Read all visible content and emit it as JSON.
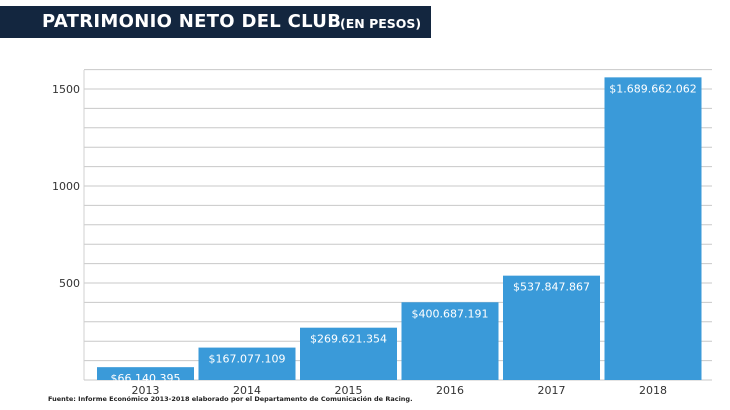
{
  "chart_data": {
    "type": "bar",
    "title": "PATRIMONIO NETO DEL CLUB",
    "subtitle": "(EN PESOS)",
    "categories": [
      "2013",
      "2014",
      "2015",
      "2016",
      "2017",
      "2018"
    ],
    "values": [
      66.140395,
      167.077109,
      269.621354,
      400.687191,
      537.847867,
      1689.662062
    ],
    "data_labels": [
      "$66.140.395",
      "$167.077.109",
      "$269.621.354",
      "$400.687.191",
      "$537.847.867",
      "$1.689.662.062"
    ],
    "yticks": [
      500,
      1000,
      1500
    ],
    "ylim": [
      0,
      1600
    ],
    "grid": true,
    "bar_color": "#3a9ad9",
    "footnote": "Fuente: Informe Económico 2013-2018 elaborado por el Departamento de Comunicación de Racing."
  }
}
